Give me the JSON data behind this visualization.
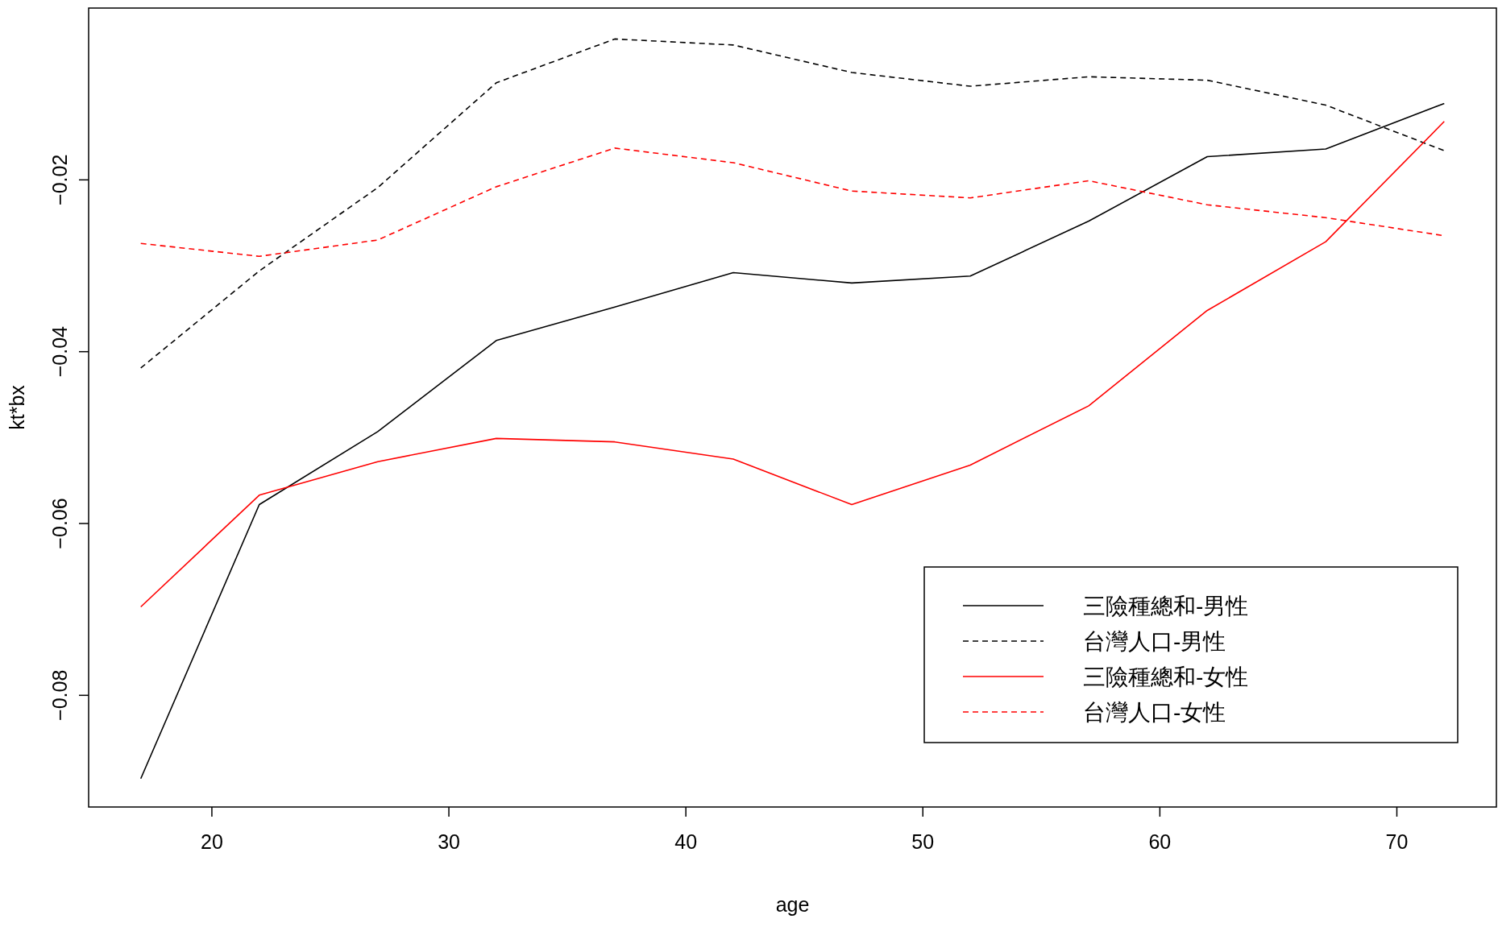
{
  "chart_data": {
    "type": "line",
    "xlabel": "age",
    "ylabel": "kt*bx",
    "x": [
      17,
      22,
      27,
      32,
      37,
      42,
      47,
      52,
      57,
      62,
      67,
      72
    ],
    "xlim": [
      14.8,
      74.2
    ],
    "xticks": [
      20,
      30,
      40,
      50,
      60,
      70
    ],
    "ylim": [
      -0.093,
      0
    ],
    "yticks": [
      -0.08,
      -0.06,
      -0.04,
      -0.02
    ],
    "grid": false,
    "legend": "bottom right",
    "marker": "none",
    "series": [
      {
        "name": "三險種總和-男性",
        "color": "#000000",
        "line_style": "solid",
        "values": [
          -0.0897,
          -0.0578,
          -0.0493,
          -0.0387,
          -0.0348,
          -0.0308,
          -0.032,
          -0.0312,
          -0.0248,
          -0.0173,
          -0.0164,
          -0.0111
        ]
      },
      {
        "name": "台灣人口-男性",
        "color": "#000000",
        "line_style": "dashed",
        "values": [
          -0.0419,
          -0.0306,
          -0.0209,
          -0.0087,
          -0.0036,
          -0.0043,
          -0.0075,
          -0.0091,
          -0.008,
          -0.0084,
          -0.0113,
          -0.0166
        ]
      },
      {
        "name": "三險種總和-女性",
        "color": "#ff0000",
        "line_style": "solid",
        "values": [
          -0.0697,
          -0.0567,
          -0.0528,
          -0.0501,
          -0.0505,
          -0.0525,
          -0.0578,
          -0.0532,
          -0.0463,
          -0.0352,
          -0.0272,
          -0.0132
        ]
      },
      {
        "name": "台灣人口-女性",
        "color": "#ff0000",
        "line_style": "dashed",
        "values": [
          -0.0274,
          -0.0289,
          -0.027,
          -0.0208,
          -0.0163,
          -0.018,
          -0.0213,
          -0.0221,
          -0.0201,
          -0.0229,
          -0.0244,
          -0.0265
        ]
      }
    ]
  }
}
